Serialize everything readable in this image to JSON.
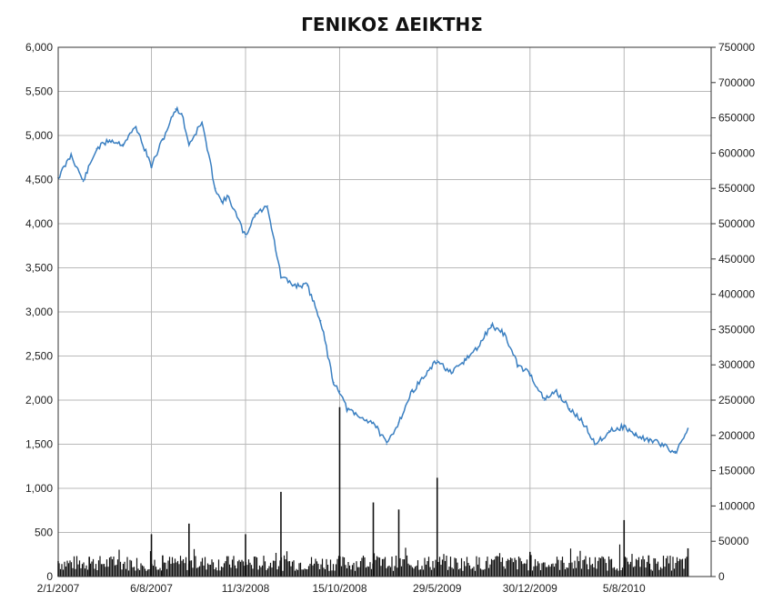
{
  "chart_data": {
    "type": "line",
    "title": "ΓΕΝΙΚΟΣ ΔΕΙΚΤΗΣ",
    "xlabel": "",
    "ylabel": "",
    "grid": true,
    "x_tick_labels": [
      "2/1/2007",
      "6/8/2007",
      "11/3/2008",
      "15/10/2008",
      "29/5/2009",
      "30/12/2009",
      "5/8/2010"
    ],
    "y_ticks_left": [
      0,
      500,
      1000,
      1500,
      2000,
      2500,
      3000,
      3500,
      4000,
      4500,
      5000,
      5500,
      6000
    ],
    "y_tick_labels_left": [
      "0",
      "500",
      "1,000",
      "1,500",
      "2,000",
      "2,500",
      "3,000",
      "3,500",
      "4,000",
      "4,500",
      "5,000",
      "5,500",
      "6,000"
    ],
    "ylim_left": [
      0,
      6000
    ],
    "y_ticks_right": [
      0,
      50000,
      100000,
      150000,
      200000,
      250000,
      300000,
      350000,
      400000,
      450000,
      500000,
      550000,
      600000,
      650000,
      700000,
      750000
    ],
    "y_tick_labels_right": [
      "0",
      "50000",
      "100000",
      "150000",
      "200000",
      "250000",
      "300000",
      "350000",
      "400000",
      "450000",
      "500000",
      "550000",
      "600000",
      "650000",
      "700000",
      "750000"
    ],
    "ylim_right": [
      0,
      750000
    ],
    "series": [
      {
        "type": "line",
        "axis": "left",
        "color": "#3a7fc1",
        "x": [
          "2/1/2007",
          "1/2/2007",
          "1/3/2007",
          "1/4/2007",
          "1/5/2007",
          "1/6/2007",
          "1/7/2007",
          "6/8/2007",
          "1/9/2007",
          "1/10/2007",
          "15/10/2007",
          "1/11/2007",
          "1/12/2007",
          "1/1/2008",
          "15/1/2008",
          "1/2/2008",
          "11/3/2008",
          "1/4/2008",
          "1/5/2008",
          "1/6/2008",
          "1/7/2008",
          "1/8/2008",
          "1/9/2008",
          "1/10/2008",
          "15/10/2008",
          "1/11/2008",
          "1/12/2008",
          "1/1/2009",
          "1/2/2009",
          "1/3/2009",
          "1/4/2009",
          "29/5/2009",
          "1/7/2009",
          "1/8/2009",
          "1/9/2009",
          "1/10/2009",
          "1/11/2009",
          "1/12/2009",
          "30/12/2009",
          "1/2/2010",
          "1/3/2010",
          "1/4/2010",
          "1/5/2010",
          "1/6/2010",
          "1/7/2010",
          "5/8/2010",
          "1/9/2010",
          "1/10/2010",
          "1/11/2010",
          "1/12/2010",
          "31/12/2010"
        ],
        "values": [
          4520,
          4780,
          4480,
          4850,
          4950,
          4900,
          5100,
          4650,
          4950,
          5300,
          5250,
          4900,
          5150,
          4400,
          4250,
          4300,
          3850,
          4100,
          4200,
          3400,
          3300,
          3300,
          2900,
          2200,
          2100,
          1900,
          1800,
          1750,
          1500,
          1750,
          2100,
          2450,
          2300,
          2450,
          2600,
          2850,
          2750,
          2400,
          2300,
          2000,
          2100,
          1900,
          1750,
          1500,
          1650,
          1700,
          1600,
          1550,
          1500,
          1400,
          1680
        ]
      },
      {
        "type": "bar",
        "axis": "right",
        "color": "#111111",
        "name": "",
        "x": [
          "2/1/2007",
          "15/3/2007",
          "6/8/2007",
          "1/9/2007",
          "1/11/2007",
          "11/3/2008",
          "1/6/2008",
          "15/10/2008",
          "1/1/2009",
          "1/3/2009",
          "29/5/2009",
          "30/12/2009",
          "5/8/2010",
          "1/10/2010",
          "31/12/2010"
        ],
        "values": [
          22000,
          28000,
          60000,
          30000,
          75000,
          60000,
          120000,
          240000,
          105000,
          95000,
          140000,
          35000,
          80000,
          30000,
          40000
        ]
      }
    ]
  }
}
